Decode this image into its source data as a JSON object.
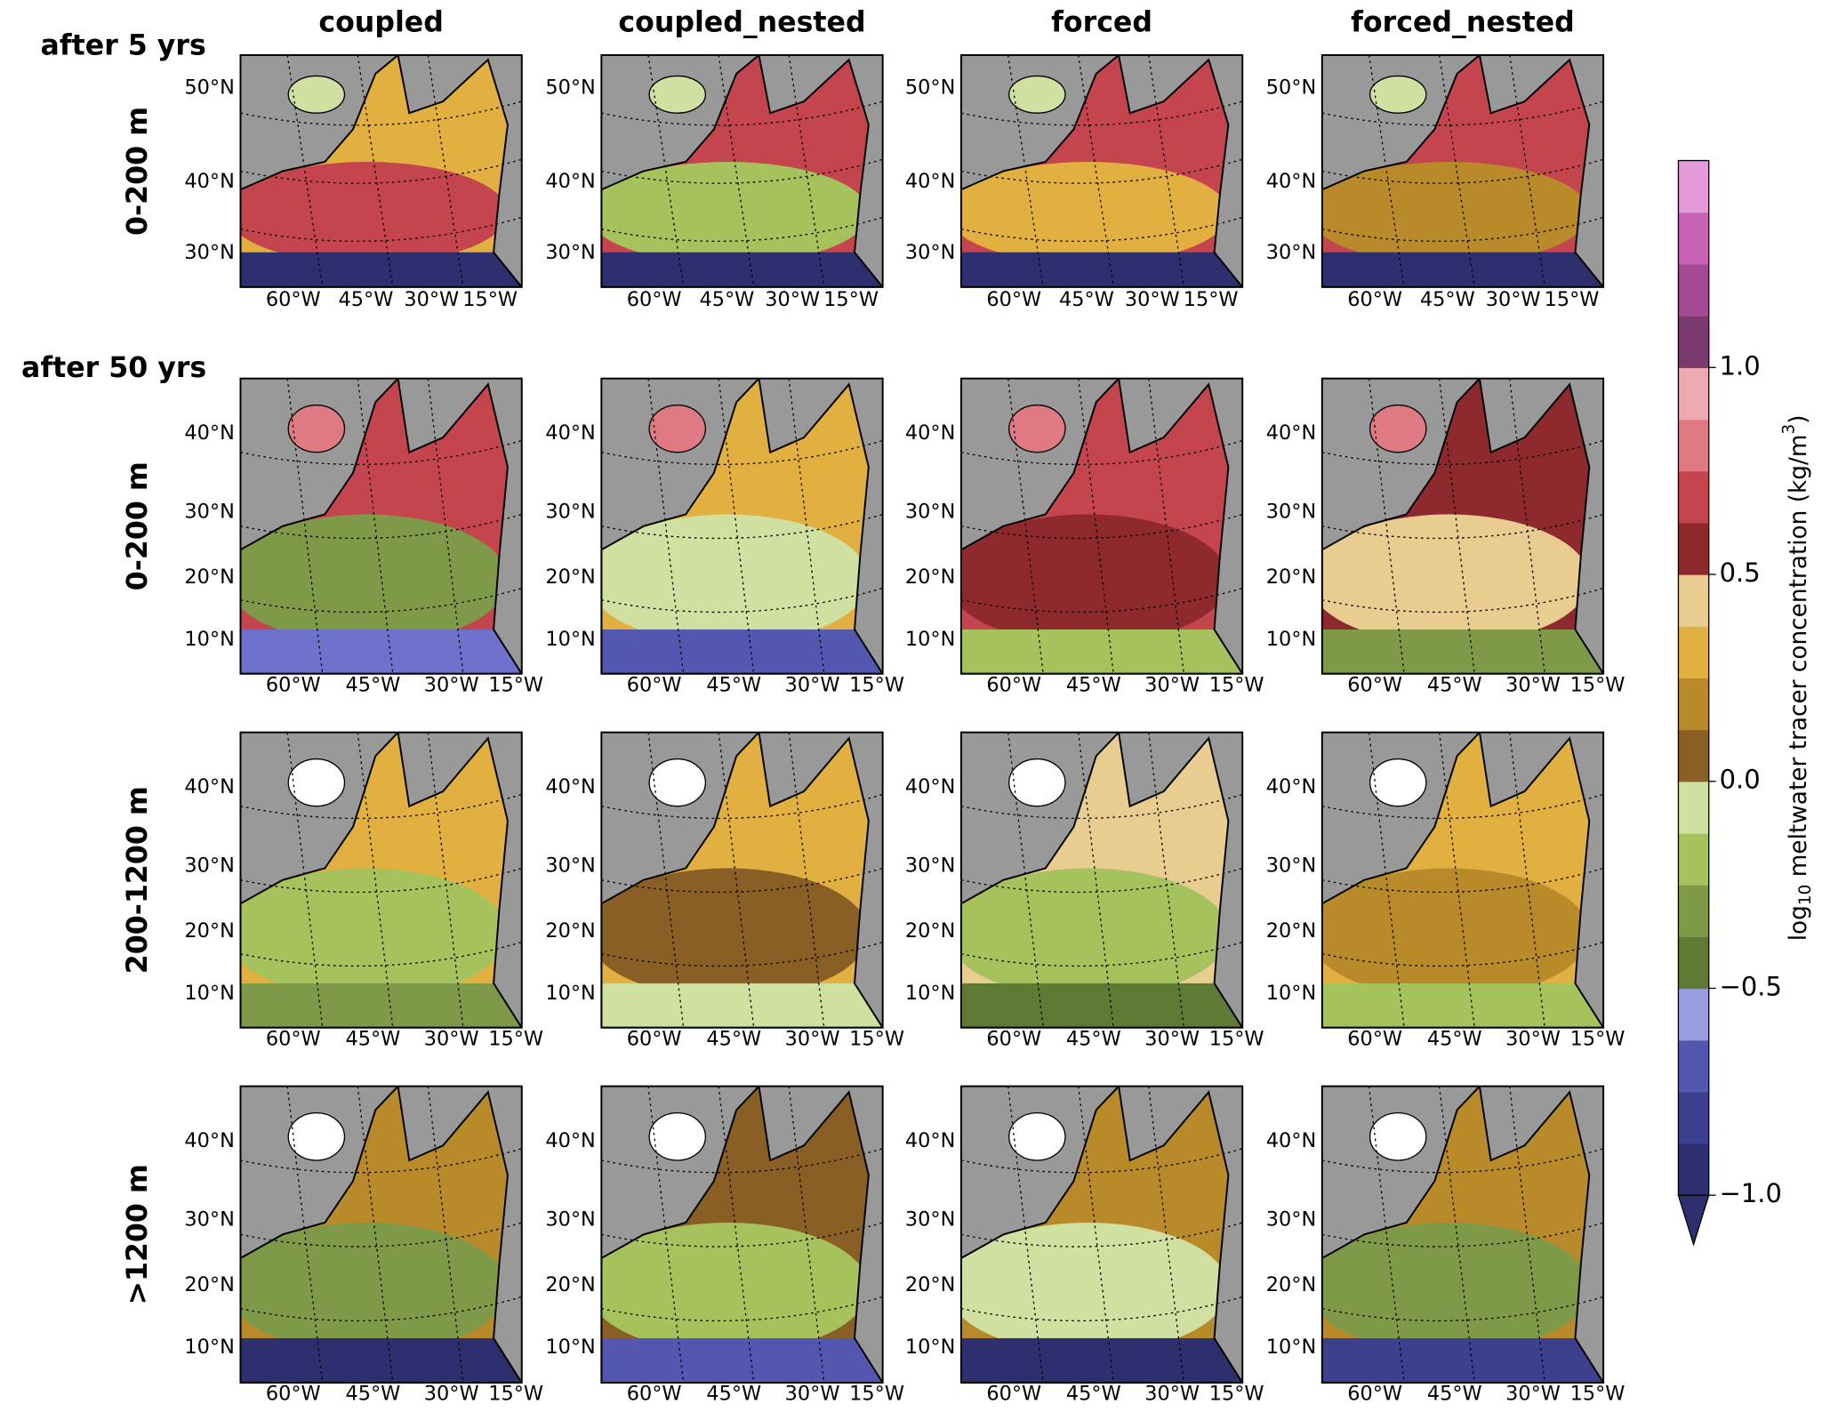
{
  "columns": [
    "coupled",
    "coupled_nested",
    "forced",
    "forced_nested"
  ],
  "rows": [
    {
      "period": "after 5 yrs",
      "depth": "0-200 m",
      "lat_labels": [
        "50°N",
        "40°N",
        "30°N"
      ],
      "lon_labels": [
        "60°W",
        "45°W",
        "30°W",
        "15°W"
      ]
    },
    {
      "period": "after 50 yrs",
      "depth": "0-200 m",
      "lat_labels": [
        "40°N",
        "30°N",
        "20°N",
        "10°N"
      ],
      "lon_labels": [
        "60°W",
        "45°W",
        "30°W",
        "15°W"
      ]
    },
    {
      "depth": "200-1200 m",
      "lat_labels": [
        "40°N",
        "30°N",
        "20°N",
        "10°N"
      ],
      "lon_labels": [
        "60°W",
        "45°W",
        "30°W",
        "15°W"
      ]
    },
    {
      "depth": ">1200 m",
      "lat_labels": [
        "40°N",
        "30°N",
        "20°N",
        "10°N"
      ],
      "lon_labels": [
        "60°W",
        "45°W",
        "30°W",
        "15°W"
      ]
    }
  ],
  "colorbar": {
    "label_parts": [
      "log",
      "10",
      " meltwater tracer concentration (kg/m",
      "3",
      ")"
    ],
    "lim": [
      -1.0,
      1.5
    ],
    "ticks": [
      {
        "value": -1.0,
        "label": "−1.0"
      },
      {
        "value": -0.5,
        "label": "−0.5"
      },
      {
        "value": 0.0,
        "label": "0.0"
      },
      {
        "value": 0.5,
        "label": "0.5"
      },
      {
        "value": 1.0,
        "label": "1.0"
      }
    ],
    "colors": [
      "#2e2f6e",
      "#3d3f8f",
      "#5457b0",
      "#9a9de0",
      "#5e7a34",
      "#7e9a48",
      "#a6c25c",
      "#cfe0a0",
      "#8a5f25",
      "#b88a2a",
      "#e2b040",
      "#e8cc90",
      "#8e2a2e",
      "#c4454e",
      "#e07a82",
      "#ecaab0",
      "#7a3a70",
      "#a44a94",
      "#c862b4",
      "#e39ad8"
    ]
  }
}
